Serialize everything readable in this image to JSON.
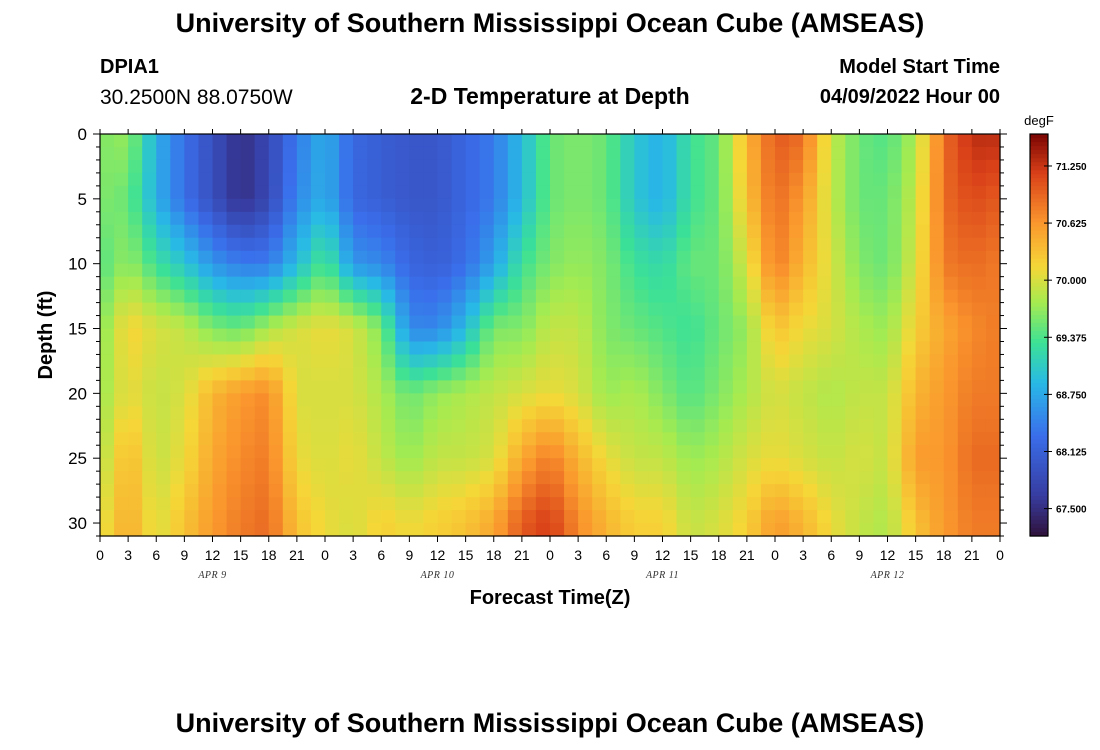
{
  "header": {
    "title": "University of Southern Mississippi Ocean Cube (AMSEAS)",
    "station_id": "DPIA1",
    "coordinates": "30.2500N  88.0750W",
    "subtitle": "2-D Temperature at Depth",
    "model_start_label": "Model Start Time",
    "model_start_value": "04/09/2022 Hour 00"
  },
  "footer": {
    "title_repeat": "University of Southern Mississippi Ocean Cube (AMSEAS)"
  },
  "chart_data": {
    "type": "heatmap",
    "title": "2-D Temperature at Depth",
    "xlabel": "Forecast Time(Z)",
    "ylabel": "Depth (ft)",
    "x_unit": "hours since 04/09/2022 00Z",
    "x_range": [
      0,
      96
    ],
    "y_range": [
      0,
      31
    ],
    "x_tick_labels": [
      "0",
      "3",
      "6",
      "9",
      "12",
      "15",
      "18",
      "21",
      "0",
      "3",
      "6",
      "9",
      "12",
      "15",
      "18",
      "21",
      "0",
      "3",
      "6",
      "9",
      "12",
      "15",
      "18",
      "21",
      "0",
      "3",
      "6",
      "9",
      "12",
      "15",
      "18",
      "21",
      "0"
    ],
    "day_labels": [
      {
        "text": "APR 9",
        "hour": 12
      },
      {
        "text": "APR 10",
        "hour": 36
      },
      {
        "text": "APR 11",
        "hour": 60
      },
      {
        "text": "APR 12",
        "hour": 84
      }
    ],
    "y_ticks": [
      0,
      5,
      10,
      15,
      20,
      25,
      30
    ],
    "colorbar": {
      "unit": "degF",
      "min": 67.2,
      "max": 71.6,
      "tick_values": [
        71.25,
        70.625,
        70.0,
        69.375,
        68.75,
        68.125,
        67.5
      ],
      "tick_labels": [
        "71.250",
        "70.625",
        "70.000",
        "69.375",
        "68.750",
        "68.125",
        "67.500"
      ]
    },
    "grid_depths": [
      0,
      5,
      10,
      15,
      20,
      25,
      30
    ],
    "grid_hours": [
      0,
      3,
      6,
      9,
      12,
      15,
      18,
      21,
      24,
      27,
      30,
      33,
      36,
      39,
      42,
      45,
      48,
      51,
      54,
      57,
      60,
      63,
      66,
      69,
      72,
      75,
      78,
      81,
      84,
      87,
      90,
      93,
      96
    ],
    "temperature_grid_degF": [
      [
        69.6,
        69.6,
        69.4,
        69.6,
        69.7,
        69.8,
        70.0
      ],
      [
        69.7,
        69.5,
        69.7,
        70.2,
        70.1,
        70.4,
        70.5
      ],
      [
        68.8,
        68.8,
        69.3,
        70.0,
        69.9,
        69.9,
        70.0
      ],
      [
        68.3,
        68.3,
        69.0,
        69.9,
        70.0,
        70.1,
        70.3
      ],
      [
        67.9,
        67.9,
        68.6,
        69.6,
        70.4,
        70.5,
        70.6
      ],
      [
        67.5,
        67.5,
        68.4,
        69.5,
        70.6,
        70.7,
        70.8
      ],
      [
        67.8,
        67.8,
        68.4,
        69.8,
        70.7,
        70.8,
        70.9
      ],
      [
        68.4,
        68.5,
        68.9,
        70.0,
        70.0,
        70.1,
        70.3
      ],
      [
        68.8,
        68.8,
        69.4,
        70.1,
        70.0,
        70.0,
        70.1
      ],
      [
        68.2,
        68.2,
        68.6,
        70.0,
        70.0,
        70.1,
        70.0
      ],
      [
        68.1,
        68.1,
        68.5,
        69.6,
        69.8,
        69.9,
        70.2
      ],
      [
        68.0,
        68.0,
        68.2,
        68.5,
        69.5,
        69.7,
        70.1
      ],
      [
        68.0,
        68.0,
        68.1,
        68.5,
        69.7,
        69.9,
        70.2
      ],
      [
        68.2,
        68.2,
        68.3,
        68.9,
        69.8,
        69.9,
        70.3
      ],
      [
        68.4,
        68.4,
        68.7,
        69.6,
        69.9,
        70.0,
        70.5
      ],
      [
        68.9,
        68.9,
        69.3,
        69.6,
        70.0,
        70.5,
        71.0
      ],
      [
        69.5,
        69.5,
        69.6,
        69.9,
        70.1,
        70.8,
        71.2
      ],
      [
        69.6,
        69.6,
        69.7,
        69.9,
        70.0,
        70.4,
        70.7
      ],
      [
        69.5,
        69.5,
        69.6,
        69.6,
        69.7,
        70.1,
        70.4
      ],
      [
        69.0,
        69.0,
        69.3,
        69.5,
        69.8,
        69.9,
        70.2
      ],
      [
        68.8,
        68.8,
        69.2,
        69.4,
        69.6,
        69.9,
        70.2
      ],
      [
        69.3,
        69.3,
        69.5,
        69.3,
        69.4,
        69.7,
        69.9
      ],
      [
        69.5,
        69.5,
        69.5,
        69.5,
        69.6,
        69.8,
        70.0
      ],
      [
        70.4,
        70.3,
        70.0,
        69.7,
        69.8,
        70.0,
        70.2
      ],
      [
        71.0,
        70.9,
        70.8,
        70.3,
        70.0,
        70.1,
        70.6
      ],
      [
        70.9,
        70.6,
        70.4,
        70.1,
        69.9,
        70.0,
        70.4
      ],
      [
        69.9,
        69.9,
        70.0,
        70.0,
        69.8,
        69.9,
        70.1
      ],
      [
        69.5,
        69.5,
        69.6,
        69.8,
        69.9,
        70.0,
        69.9
      ],
      [
        69.4,
        69.5,
        69.5,
        69.7,
        69.9,
        69.9,
        69.8
      ],
      [
        69.8,
        69.9,
        70.0,
        70.2,
        70.4,
        70.6,
        70.3
      ],
      [
        70.9,
        70.9,
        70.8,
        70.5,
        70.6,
        70.6,
        70.6
      ],
      [
        71.3,
        71.1,
        70.9,
        70.7,
        70.8,
        70.9,
        70.8
      ],
      [
        71.3,
        71.0,
        70.8,
        70.8,
        70.8,
        70.9,
        70.8
      ]
    ]
  }
}
